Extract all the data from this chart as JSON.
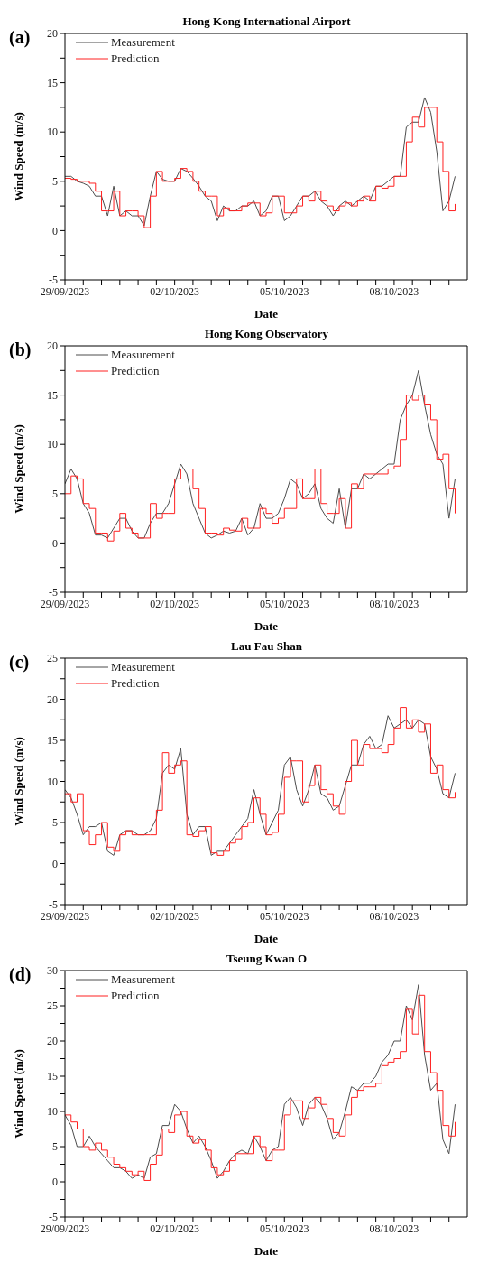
{
  "chart_data": [
    {
      "type": "line",
      "title": "Hong Kong International Airport",
      "xlabel": "Date",
      "ylabel": "Wind Speed (m/s)",
      "annotations": [
        "(a)"
      ],
      "legend": "top left",
      "x": [
        "2023-09-29T00:00",
        "2023-09-29T04:00",
        "2023-09-29T08:00",
        "2023-09-29T12:00",
        "2023-09-29T16:00",
        "2023-09-29T20:00",
        "2023-09-30T00:00",
        "2023-09-30T04:00",
        "2023-09-30T08:00",
        "2023-09-30T12:00",
        "2023-09-30T16:00",
        "2023-09-30T20:00",
        "2023-10-01T00:00",
        "2023-10-01T04:00",
        "2023-10-01T08:00",
        "2023-10-01T12:00",
        "2023-10-01T16:00",
        "2023-10-01T20:00",
        "2023-10-02T00:00",
        "2023-10-02T04:00",
        "2023-10-02T08:00",
        "2023-10-02T12:00",
        "2023-10-02T16:00",
        "2023-10-02T20:00",
        "2023-10-03T00:00",
        "2023-10-03T04:00",
        "2023-10-03T08:00",
        "2023-10-03T12:00",
        "2023-10-03T16:00",
        "2023-10-03T20:00",
        "2023-10-04T00:00",
        "2023-10-04T04:00",
        "2023-10-04T08:00",
        "2023-10-04T12:00",
        "2023-10-04T16:00",
        "2023-10-04T20:00",
        "2023-10-05T00:00",
        "2023-10-05T04:00",
        "2023-10-05T08:00",
        "2023-10-05T12:00",
        "2023-10-05T16:00",
        "2023-10-05T20:00",
        "2023-10-06T00:00",
        "2023-10-06T04:00",
        "2023-10-06T08:00",
        "2023-10-06T12:00",
        "2023-10-06T16:00",
        "2023-10-06T20:00",
        "2023-10-07T00:00",
        "2023-10-07T04:00",
        "2023-10-07T08:00",
        "2023-10-07T12:00",
        "2023-10-07T16:00",
        "2023-10-07T20:00",
        "2023-10-08T00:00",
        "2023-10-08T04:00",
        "2023-10-08T08:00",
        "2023-10-08T12:00",
        "2023-10-08T16:00",
        "2023-10-08T20:00",
        "2023-10-09T00:00",
        "2023-10-09T04:00",
        "2023-10-09T08:00",
        "2023-10-09T12:00",
        "2023-10-09T16:00"
      ],
      "series": [
        {
          "name": "Measurement",
          "color": "#4d4d4d",
          "values": [
            5.5,
            5.5,
            5.0,
            4.8,
            4.5,
            3.5,
            3.5,
            1.5,
            4.5,
            1.5,
            2.0,
            1.5,
            1.5,
            0.5,
            3.5,
            6.0,
            5.2,
            5.0,
            5.0,
            6.3,
            6.0,
            5.3,
            4.5,
            3.5,
            3.0,
            1.0,
            2.5,
            2.0,
            2.0,
            2.5,
            2.5,
            3.0,
            1.5,
            2.0,
            3.5,
            3.5,
            1.0,
            1.5,
            2.5,
            3.5,
            3.5,
            4.0,
            3.0,
            2.5,
            1.5,
            2.5,
            3.0,
            2.5,
            3.0,
            3.5,
            3.0,
            4.5,
            4.5,
            5.0,
            5.5,
            5.5,
            10.5,
            11.0,
            11.0,
            13.5,
            12.0,
            8.0,
            2.0,
            3.0,
            5.5
          ]
        },
        {
          "name": "Prediction",
          "type": "step",
          "color": "#ff2020",
          "values": [
            5.3,
            5.2,
            5.0,
            5.0,
            4.8,
            4.0,
            2.0,
            2.0,
            4.0,
            1.5,
            2.0,
            2.0,
            1.5,
            0.3,
            3.5,
            6.0,
            5.0,
            5.0,
            5.3,
            6.3,
            6.0,
            5.0,
            4.0,
            3.5,
            3.5,
            1.5,
            2.3,
            2.0,
            2.0,
            2.5,
            2.8,
            2.8,
            1.5,
            1.8,
            3.5,
            3.5,
            1.8,
            1.8,
            2.5,
            3.5,
            3.0,
            4.0,
            3.0,
            2.5,
            2.0,
            2.5,
            2.8,
            2.5,
            3.0,
            3.5,
            3.0,
            4.5,
            4.3,
            4.5,
            5.5,
            5.5,
            9.0,
            11.5,
            10.5,
            12.5,
            12.5,
            9.0,
            6.0,
            2.0,
            2.7
          ]
        }
      ],
      "xlim": [
        "2023-09-29T00:00",
        "2023-10-10T00:00"
      ],
      "xticks": [
        {
          "value": "2023-09-29T00:00",
          "label": "29/09/2023"
        },
        {
          "value": "2023-09-29T12:00",
          "label": null
        },
        {
          "value": "2023-09-30T00:00",
          "label": null
        },
        {
          "value": "2023-09-30T12:00",
          "label": null
        },
        {
          "value": "2023-10-01T00:00",
          "label": null
        },
        {
          "value": "2023-10-01T12:00",
          "label": null
        },
        {
          "value": "2023-10-02T00:00",
          "label": "02/10/2023"
        },
        {
          "value": "2023-10-02T12:00",
          "label": null
        },
        {
          "value": "2023-10-03T00:00",
          "label": null
        },
        {
          "value": "2023-10-03T12:00",
          "label": null
        },
        {
          "value": "2023-10-04T00:00",
          "label": null
        },
        {
          "value": "2023-10-04T12:00",
          "label": null
        },
        {
          "value": "2023-10-05T00:00",
          "label": "05/10/2023"
        },
        {
          "value": "2023-10-05T12:00",
          "label": null
        },
        {
          "value": "2023-10-06T00:00",
          "label": null
        },
        {
          "value": "2023-10-06T12:00",
          "label": null
        },
        {
          "value": "2023-10-07T00:00",
          "label": null
        },
        {
          "value": "2023-10-07T12:00",
          "label": null
        },
        {
          "value": "2023-10-08T00:00",
          "label": "08/10/2023"
        },
        {
          "value": "2023-10-08T12:00",
          "label": null
        },
        {
          "value": "2023-10-09T00:00",
          "label": null
        },
        {
          "value": "2023-10-09T12:00",
          "label": null
        }
      ],
      "ylim": [
        -5,
        20
      ],
      "yticks": [
        -5,
        {
          "value": -2.5,
          "label": null
        },
        0,
        {
          "value": 2.5,
          "label": null
        },
        5,
        {
          "value": 7.5,
          "label": null
        },
        10,
        {
          "value": 12.5,
          "label": null
        },
        15,
        {
          "value": 17.5,
          "label": null
        },
        20
      ]
    },
    {
      "type": "line",
      "title": "Hong Kong Observatory",
      "xlabel": "Date",
      "ylabel": "Wind Speed (m/s)",
      "annotations": [
        "(b)"
      ],
      "legend": "top left",
      "x": [
        "2023-09-29T00:00",
        "2023-09-29T04:00",
        "2023-09-29T08:00",
        "2023-09-29T12:00",
        "2023-09-29T16:00",
        "2023-09-29T20:00",
        "2023-09-30T00:00",
        "2023-09-30T04:00",
        "2023-09-30T08:00",
        "2023-09-30T12:00",
        "2023-09-30T16:00",
        "2023-09-30T20:00",
        "2023-10-01T00:00",
        "2023-10-01T04:00",
        "2023-10-01T08:00",
        "2023-10-01T12:00",
        "2023-10-01T16:00",
        "2023-10-01T20:00",
        "2023-10-02T00:00",
        "2023-10-02T04:00",
        "2023-10-02T08:00",
        "2023-10-02T12:00",
        "2023-10-02T16:00",
        "2023-10-02T20:00",
        "2023-10-03T00:00",
        "2023-10-03T04:00",
        "2023-10-03T08:00",
        "2023-10-03T12:00",
        "2023-10-03T16:00",
        "2023-10-03T20:00",
        "2023-10-04T00:00",
        "2023-10-04T04:00",
        "2023-10-04T08:00",
        "2023-10-04T12:00",
        "2023-10-04T16:00",
        "2023-10-04T20:00",
        "2023-10-05T00:00",
        "2023-10-05T04:00",
        "2023-10-05T08:00",
        "2023-10-05T12:00",
        "2023-10-05T16:00",
        "2023-10-05T20:00",
        "2023-10-06T00:00",
        "2023-10-06T04:00",
        "2023-10-06T08:00",
        "2023-10-06T12:00",
        "2023-10-06T16:00",
        "2023-10-06T20:00",
        "2023-10-07T00:00",
        "2023-10-07T04:00",
        "2023-10-07T08:00",
        "2023-10-07T12:00",
        "2023-10-07T16:00",
        "2023-10-07T20:00",
        "2023-10-08T00:00",
        "2023-10-08T04:00",
        "2023-10-08T08:00",
        "2023-10-08T12:00",
        "2023-10-08T16:00",
        "2023-10-08T20:00",
        "2023-10-09T00:00",
        "2023-10-09T04:00",
        "2023-10-09T08:00",
        "2023-10-09T12:00",
        "2023-10-09T16:00"
      ],
      "series": [
        {
          "name": "Measurement",
          "color": "#4d4d4d",
          "values": [
            6.0,
            7.5,
            6.5,
            4.0,
            3.0,
            0.8,
            0.8,
            0.5,
            1.5,
            2.5,
            2.5,
            1.2,
            0.5,
            0.5,
            2.0,
            3.0,
            3.0,
            4.0,
            6.0,
            8.0,
            7.0,
            4.0,
            2.5,
            1.0,
            0.5,
            0.8,
            1.2,
            1.0,
            1.2,
            2.5,
            0.8,
            1.5,
            4.0,
            2.5,
            2.5,
            3.0,
            4.5,
            6.5,
            6.0,
            4.5,
            5.0,
            6.0,
            3.5,
            2.5,
            2.0,
            5.5,
            1.5,
            5.5,
            5.5,
            7.0,
            6.5,
            7.0,
            7.5,
            8.0,
            8.0,
            12.5,
            14.0,
            15.0,
            17.5,
            14.0,
            11.0,
            9.0,
            8.0,
            2.5,
            6.5
          ]
        },
        {
          "name": "Prediction",
          "type": "step",
          "color": "#ff2020",
          "values": [
            5.0,
            6.8,
            6.5,
            4.0,
            3.5,
            1.0,
            1.0,
            0.2,
            1.2,
            3.0,
            1.5,
            1.0,
            0.5,
            0.5,
            4.0,
            2.5,
            3.0,
            3.0,
            6.5,
            7.5,
            7.5,
            5.5,
            3.5,
            1.0,
            1.0,
            0.8,
            1.5,
            1.3,
            1.2,
            2.5,
            1.5,
            1.5,
            3.5,
            3.0,
            2.0,
            2.5,
            3.5,
            3.5,
            6.5,
            4.5,
            4.5,
            7.5,
            4.0,
            3.0,
            3.0,
            4.5,
            1.5,
            6.0,
            5.5,
            7.0,
            7.0,
            7.0,
            7.0,
            7.5,
            7.8,
            10.5,
            15.0,
            14.5,
            15.0,
            14.0,
            12.5,
            8.5,
            9.0,
            5.5,
            3.0
          ]
        }
      ],
      "xlim": [
        "2023-09-29T00:00",
        "2023-10-10T00:00"
      ],
      "xticks": [
        {
          "value": "2023-09-29T00:00",
          "label": "29/09/2023"
        },
        {
          "value": "2023-09-29T12:00",
          "label": null
        },
        {
          "value": "2023-09-30T00:00",
          "label": null
        },
        {
          "value": "2023-09-30T12:00",
          "label": null
        },
        {
          "value": "2023-10-01T00:00",
          "label": null
        },
        {
          "value": "2023-10-01T12:00",
          "label": null
        },
        {
          "value": "2023-10-02T00:00",
          "label": "02/10/2023"
        },
        {
          "value": "2023-10-02T12:00",
          "label": null
        },
        {
          "value": "2023-10-03T00:00",
          "label": null
        },
        {
          "value": "2023-10-03T12:00",
          "label": null
        },
        {
          "value": "2023-10-04T00:00",
          "label": null
        },
        {
          "value": "2023-10-04T12:00",
          "label": null
        },
        {
          "value": "2023-10-05T00:00",
          "label": "05/10/2023"
        },
        {
          "value": "2023-10-05T12:00",
          "label": null
        },
        {
          "value": "2023-10-06T00:00",
          "label": null
        },
        {
          "value": "2023-10-06T12:00",
          "label": null
        },
        {
          "value": "2023-10-07T00:00",
          "label": null
        },
        {
          "value": "2023-10-07T12:00",
          "label": null
        },
        {
          "value": "2023-10-08T00:00",
          "label": "08/10/2023"
        },
        {
          "value": "2023-10-08T12:00",
          "label": null
        },
        {
          "value": "2023-10-09T00:00",
          "label": null
        },
        {
          "value": "2023-10-09T12:00",
          "label": null
        }
      ],
      "ylim": [
        -5,
        20
      ],
      "yticks": [
        -5,
        {
          "value": -2.5,
          "label": null
        },
        0,
        {
          "value": 2.5,
          "label": null
        },
        5,
        {
          "value": 7.5,
          "label": null
        },
        10,
        {
          "value": 12.5,
          "label": null
        },
        15,
        {
          "value": 17.5,
          "label": null
        },
        20
      ]
    },
    {
      "type": "line",
      "title": "Lau Fau Shan",
      "xlabel": "Date",
      "ylabel": "Wind Speed (m/s)",
      "annotations": [
        "(c)"
      ],
      "legend": "top left",
      "x": [
        "2023-09-29T00:00",
        "2023-09-29T04:00",
        "2023-09-29T08:00",
        "2023-09-29T12:00",
        "2023-09-29T16:00",
        "2023-09-29T20:00",
        "2023-09-30T00:00",
        "2023-09-30T04:00",
        "2023-09-30T08:00",
        "2023-09-30T12:00",
        "2023-09-30T16:00",
        "2023-09-30T20:00",
        "2023-10-01T00:00",
        "2023-10-01T04:00",
        "2023-10-01T08:00",
        "2023-10-01T12:00",
        "2023-10-01T16:00",
        "2023-10-01T20:00",
        "2023-10-02T00:00",
        "2023-10-02T04:00",
        "2023-10-02T08:00",
        "2023-10-02T12:00",
        "2023-10-02T16:00",
        "2023-10-02T20:00",
        "2023-10-03T00:00",
        "2023-10-03T04:00",
        "2023-10-03T08:00",
        "2023-10-03T12:00",
        "2023-10-03T16:00",
        "2023-10-03T20:00",
        "2023-10-04T00:00",
        "2023-10-04T04:00",
        "2023-10-04T08:00",
        "2023-10-04T12:00",
        "2023-10-04T16:00",
        "2023-10-04T20:00",
        "2023-10-05T00:00",
        "2023-10-05T04:00",
        "2023-10-05T08:00",
        "2023-10-05T12:00",
        "2023-10-05T16:00",
        "2023-10-05T20:00",
        "2023-10-06T00:00",
        "2023-10-06T04:00",
        "2023-10-06T08:00",
        "2023-10-06T12:00",
        "2023-10-06T16:00",
        "2023-10-06T20:00",
        "2023-10-07T00:00",
        "2023-10-07T04:00",
        "2023-10-07T08:00",
        "2023-10-07T12:00",
        "2023-10-07T16:00",
        "2023-10-07T20:00",
        "2023-10-08T00:00",
        "2023-10-08T04:00",
        "2023-10-08T08:00",
        "2023-10-08T12:00",
        "2023-10-08T16:00",
        "2023-10-08T20:00",
        "2023-10-09T00:00",
        "2023-10-09T04:00",
        "2023-10-09T08:00",
        "2023-10-09T12:00",
        "2023-10-09T16:00"
      ],
      "series": [
        {
          "name": "Measurement",
          "color": "#4d4d4d",
          "values": [
            9.0,
            8.0,
            6.0,
            3.5,
            4.5,
            4.5,
            5.0,
            1.5,
            1.0,
            3.5,
            4.0,
            4.0,
            3.5,
            3.5,
            4.0,
            5.5,
            11.0,
            12.0,
            11.5,
            14.0,
            6.0,
            3.5,
            4.5,
            4.5,
            1.0,
            1.5,
            1.5,
            2.5,
            3.5,
            4.5,
            5.5,
            9.0,
            6.0,
            3.5,
            5.0,
            6.5,
            12.0,
            13.0,
            9.0,
            7.0,
            9.0,
            12.0,
            8.5,
            8.0,
            6.5,
            7.0,
            9.5,
            12.0,
            12.0,
            14.5,
            15.5,
            14.0,
            14.5,
            18.0,
            16.5,
            17.0,
            17.5,
            16.5,
            17.5,
            17.0,
            13.0,
            11.5,
            8.5,
            8.0,
            11.0
          ]
        },
        {
          "name": "Prediction",
          "type": "step",
          "color": "#ff2020",
          "values": [
            8.5,
            7.5,
            8.5,
            4.0,
            2.3,
            3.5,
            5.0,
            2.0,
            1.5,
            3.5,
            4.0,
            3.5,
            3.5,
            3.5,
            3.5,
            6.5,
            13.5,
            11.0,
            12.0,
            12.5,
            3.5,
            3.3,
            4.0,
            4.5,
            1.3,
            1.0,
            1.5,
            2.5,
            3.0,
            4.5,
            5.0,
            8.0,
            6.0,
            3.5,
            3.8,
            6.0,
            10.5,
            12.5,
            12.5,
            7.5,
            9.5,
            12.0,
            9.0,
            8.5,
            7.0,
            6.0,
            10.0,
            15.0,
            12.0,
            14.5,
            14.0,
            14.0,
            13.5,
            14.5,
            16.5,
            19.0,
            16.5,
            17.5,
            16.0,
            17.0,
            11.0,
            12.0,
            9.0,
            8.0,
            8.7
          ]
        }
      ],
      "xlim": [
        "2023-09-29T00:00",
        "2023-10-10T00:00"
      ],
      "xticks": [
        {
          "value": "2023-09-29T00:00",
          "label": "29/09/2023"
        },
        {
          "value": "2023-09-29T12:00",
          "label": null
        },
        {
          "value": "2023-09-30T00:00",
          "label": null
        },
        {
          "value": "2023-09-30T12:00",
          "label": null
        },
        {
          "value": "2023-10-01T00:00",
          "label": null
        },
        {
          "value": "2023-10-01T12:00",
          "label": null
        },
        {
          "value": "2023-10-02T00:00",
          "label": "02/10/2023"
        },
        {
          "value": "2023-10-02T12:00",
          "label": null
        },
        {
          "value": "2023-10-03T00:00",
          "label": null
        },
        {
          "value": "2023-10-03T12:00",
          "label": null
        },
        {
          "value": "2023-10-04T00:00",
          "label": null
        },
        {
          "value": "2023-10-04T12:00",
          "label": null
        },
        {
          "value": "2023-10-05T00:00",
          "label": "05/10/2023"
        },
        {
          "value": "2023-10-05T12:00",
          "label": null
        },
        {
          "value": "2023-10-06T00:00",
          "label": null
        },
        {
          "value": "2023-10-06T12:00",
          "label": null
        },
        {
          "value": "2023-10-07T00:00",
          "label": null
        },
        {
          "value": "2023-10-07T12:00",
          "label": null
        },
        {
          "value": "2023-10-08T00:00",
          "label": "08/10/2023"
        },
        {
          "value": "2023-10-08T12:00",
          "label": null
        },
        {
          "value": "2023-10-09T00:00",
          "label": null
        },
        {
          "value": "2023-10-09T12:00",
          "label": null
        }
      ],
      "ylim": [
        -5,
        25
      ],
      "yticks": [
        -5,
        {
          "value": -2.5,
          "label": null
        },
        0,
        {
          "value": 2.5,
          "label": null
        },
        5,
        {
          "value": 7.5,
          "label": null
        },
        10,
        {
          "value": 12.5,
          "label": null
        },
        15,
        {
          "value": 17.5,
          "label": null
        },
        20,
        {
          "value": 22.5,
          "label": null
        },
        25
      ]
    },
    {
      "type": "line",
      "title": "Tseung Kwan O",
      "xlabel": "Date",
      "ylabel": "Wind Speed (m/s)",
      "annotations": [
        "(d)"
      ],
      "legend": "top left",
      "x": [
        "2023-09-29T00:00",
        "2023-09-29T04:00",
        "2023-09-29T08:00",
        "2023-09-29T12:00",
        "2023-09-29T16:00",
        "2023-09-29T20:00",
        "2023-09-30T00:00",
        "2023-09-30T04:00",
        "2023-09-30T08:00",
        "2023-09-30T12:00",
        "2023-09-30T16:00",
        "2023-09-30T20:00",
        "2023-10-01T00:00",
        "2023-10-01T04:00",
        "2023-10-01T08:00",
        "2023-10-01T12:00",
        "2023-10-01T16:00",
        "2023-10-01T20:00",
        "2023-10-02T00:00",
        "2023-10-02T04:00",
        "2023-10-02T08:00",
        "2023-10-02T12:00",
        "2023-10-02T16:00",
        "2023-10-02T20:00",
        "2023-10-03T00:00",
        "2023-10-03T04:00",
        "2023-10-03T08:00",
        "2023-10-03T12:00",
        "2023-10-03T16:00",
        "2023-10-03T20:00",
        "2023-10-04T00:00",
        "2023-10-04T04:00",
        "2023-10-04T08:00",
        "2023-10-04T12:00",
        "2023-10-04T16:00",
        "2023-10-04T20:00",
        "2023-10-05T00:00",
        "2023-10-05T04:00",
        "2023-10-05T08:00",
        "2023-10-05T12:00",
        "2023-10-05T16:00",
        "2023-10-05T20:00",
        "2023-10-06T00:00",
        "2023-10-06T04:00",
        "2023-10-06T08:00",
        "2023-10-06T12:00",
        "2023-10-06T16:00",
        "2023-10-06T20:00",
        "2023-10-07T00:00",
        "2023-10-07T04:00",
        "2023-10-07T08:00",
        "2023-10-07T12:00",
        "2023-10-07T16:00",
        "2023-10-07T20:00",
        "2023-10-08T00:00",
        "2023-10-08T04:00",
        "2023-10-08T08:00",
        "2023-10-08T12:00",
        "2023-10-08T16:00",
        "2023-10-08T20:00",
        "2023-10-09T00:00",
        "2023-10-09T04:00",
        "2023-10-09T08:00",
        "2023-10-09T12:00",
        "2023-10-09T16:00"
      ],
      "series": [
        {
          "name": "Measurement",
          "color": "#4d4d4d",
          "values": [
            9.5,
            8.0,
            5.0,
            5.0,
            6.5,
            5.0,
            4.0,
            3.0,
            2.0,
            2.0,
            1.5,
            0.5,
            1.0,
            0.5,
            3.5,
            4.0,
            8.0,
            8.0,
            11.0,
            10.0,
            7.5,
            5.5,
            6.5,
            5.0,
            3.0,
            0.5,
            1.5,
            3.0,
            4.0,
            4.5,
            4.0,
            6.5,
            5.0,
            3.0,
            4.5,
            5.0,
            11.0,
            12.0,
            10.5,
            8.0,
            11.0,
            12.0,
            11.0,
            9.0,
            6.0,
            7.0,
            10.0,
            13.5,
            13.0,
            14.0,
            14.0,
            15.0,
            17.0,
            18.0,
            20.0,
            20.0,
            25.0,
            23.0,
            28.0,
            18.0,
            13.0,
            14.0,
            6.0,
            4.0,
            11.0
          ]
        },
        {
          "name": "Prediction",
          "type": "step",
          "color": "#ff2020",
          "values": [
            9.5,
            8.5,
            7.5,
            5.0,
            4.5,
            5.5,
            4.5,
            3.5,
            2.5,
            2.0,
            1.5,
            1.0,
            1.5,
            0.2,
            2.5,
            3.8,
            7.5,
            7.0,
            9.5,
            10.0,
            6.5,
            5.5,
            6.0,
            4.5,
            2.0,
            1.0,
            1.5,
            3.0,
            4.0,
            4.0,
            4.0,
            6.5,
            5.0,
            3.0,
            4.5,
            4.5,
            9.5,
            11.5,
            11.5,
            9.0,
            10.5,
            12.0,
            11.0,
            9.0,
            7.0,
            6.5,
            9.5,
            12.0,
            13.0,
            13.5,
            13.5,
            14.0,
            16.5,
            17.0,
            17.5,
            18.5,
            24.5,
            21.0,
            26.5,
            18.5,
            15.5,
            13.0,
            8.0,
            6.5,
            8.5
          ]
        }
      ],
      "xlim": [
        "2023-09-29T00:00",
        "2023-10-10T00:00"
      ],
      "xticks": [
        {
          "value": "2023-09-29T00:00",
          "label": "29/09/2023"
        },
        {
          "value": "2023-09-29T12:00",
          "label": null
        },
        {
          "value": "2023-09-30T00:00",
          "label": null
        },
        {
          "value": "2023-09-30T12:00",
          "label": null
        },
        {
          "value": "2023-10-01T00:00",
          "label": null
        },
        {
          "value": "2023-10-01T12:00",
          "label": null
        },
        {
          "value": "2023-10-02T00:00",
          "label": "02/10/2023"
        },
        {
          "value": "2023-10-02T12:00",
          "label": null
        },
        {
          "value": "2023-10-03T00:00",
          "label": null
        },
        {
          "value": "2023-10-03T12:00",
          "label": null
        },
        {
          "value": "2023-10-04T00:00",
          "label": null
        },
        {
          "value": "2023-10-04T12:00",
          "label": null
        },
        {
          "value": "2023-10-05T00:00",
          "label": "05/10/2023"
        },
        {
          "value": "2023-10-05T12:00",
          "label": null
        },
        {
          "value": "2023-10-06T00:00",
          "label": null
        },
        {
          "value": "2023-10-06T12:00",
          "label": null
        },
        {
          "value": "2023-10-07T00:00",
          "label": null
        },
        {
          "value": "2023-10-07T12:00",
          "label": null
        },
        {
          "value": "2023-10-08T00:00",
          "label": "08/10/2023"
        },
        {
          "value": "2023-10-08T12:00",
          "label": null
        },
        {
          "value": "2023-10-09T00:00",
          "label": null
        },
        {
          "value": "2023-10-09T12:00",
          "label": null
        }
      ],
      "ylim": [
        -5,
        30
      ],
      "yticks": [
        -5,
        {
          "value": -2.5,
          "label": null
        },
        0,
        {
          "value": 2.5,
          "label": null
        },
        5,
        {
          "value": 7.5,
          "label": null
        },
        10,
        {
          "value": 12.5,
          "label": null
        },
        15,
        {
          "value": 17.5,
          "label": null
        },
        20,
        {
          "value": 22.5,
          "label": null
        },
        25,
        {
          "value": 27.5,
          "label": null
        },
        30
      ]
    }
  ]
}
